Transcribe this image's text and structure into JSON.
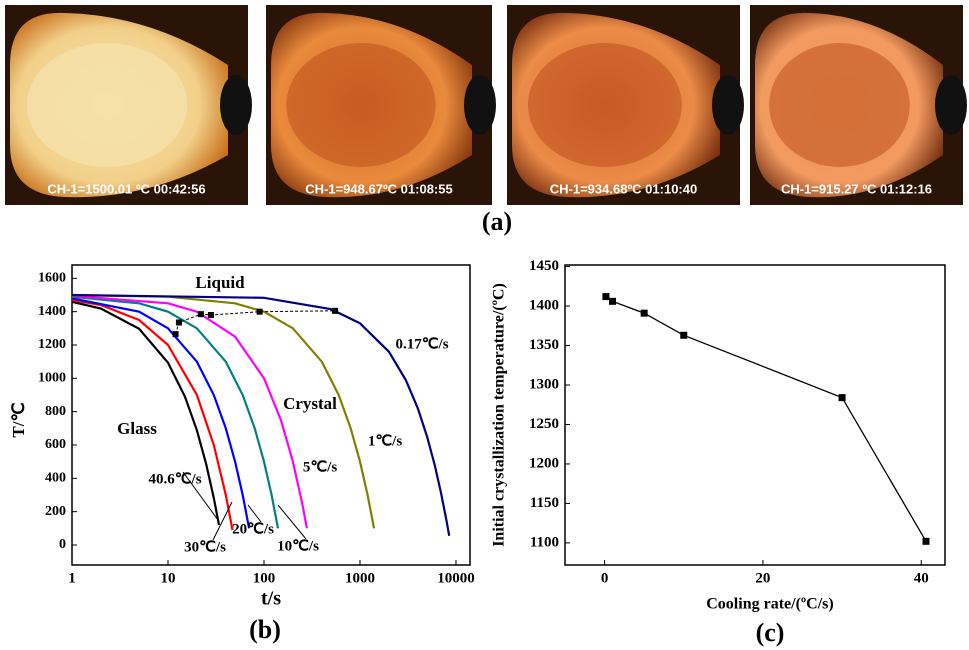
{
  "photos": [
    {
      "caption": "CH-1=1500.01 ºC  00:42:56"
    },
    {
      "caption": "CH-1=948.67ºC  01:08:55"
    },
    {
      "caption": "CH-1=934.68ºC  01:10:40"
    },
    {
      "caption": "CH-1=915.27 ºC  01:12:16"
    }
  ],
  "panel_labels": [
    "(a)",
    "(b)",
    "(c)"
  ],
  "chart_data": [
    {
      "type": "line",
      "x_label": "t/s",
      "y_label": "T/℃",
      "log_x": true,
      "xlim": [
        1,
        14000
      ],
      "xticks": [
        1,
        10,
        100,
        1000,
        10000
      ],
      "ylim": [
        -120,
        1680
      ],
      "yticks": [
        0,
        200,
        400,
        600,
        800,
        1000,
        1200,
        1400,
        1600
      ],
      "annotations": [
        "Liquid",
        "Crystal",
        "Glass"
      ],
      "series": [
        {
          "name": "40.6℃/s",
          "color": "#000000",
          "x": [
            1,
            2,
            5,
            10,
            15,
            20,
            25,
            30,
            34
          ],
          "values": [
            1459,
            1419,
            1297,
            1094,
            891,
            688,
            485,
            282,
            120
          ]
        },
        {
          "name": "30℃/s",
          "color": "#ff0000",
          "x": [
            1,
            2,
            5,
            10,
            20,
            30,
            40,
            47
          ],
          "values": [
            1470,
            1440,
            1350,
            1200,
            900,
            600,
            300,
            90
          ]
        },
        {
          "name": "20℃/s",
          "color": "#0000ff",
          "x": [
            1,
            5,
            10,
            20,
            30,
            40,
            50,
            60,
            70
          ],
          "values": [
            1480,
            1400,
            1300,
            1100,
            900,
            700,
            500,
            300,
            100
          ]
        },
        {
          "name": "10℃/s",
          "color": "#008080",
          "x": [
            1,
            5,
            10,
            20,
            40,
            60,
            80,
            100,
            120,
            140
          ],
          "values": [
            1490,
            1450,
            1400,
            1300,
            1100,
            900,
            700,
            500,
            300,
            100
          ]
        },
        {
          "name": "5℃/s",
          "color": "#ff00ff",
          "x": [
            1,
            10,
            20,
            50,
            100,
            150,
            200,
            250,
            280
          ],
          "values": [
            1495,
            1450,
            1400,
            1250,
            1000,
            750,
            500,
            250,
            100
          ]
        },
        {
          "name": "1℃/s",
          "color": "#808000",
          "x": [
            1,
            10,
            50,
            100,
            200,
            400,
            600,
            800,
            1000,
            1200,
            1400
          ],
          "values": [
            1499,
            1490,
            1450,
            1400,
            1300,
            1100,
            900,
            700,
            500,
            300,
            100
          ]
        },
        {
          "name": "0.17℃/s",
          "color": "#000080",
          "x": [
            1,
            100,
            500,
            1000,
            2000,
            3000,
            4000,
            5000,
            6000,
            7000,
            8000,
            8500
          ],
          "values": [
            1500,
            1483,
            1415,
            1330,
            1160,
            990,
            820,
            650,
            480,
            310,
            140,
            55
          ]
        }
      ],
      "markers": {
        "x": [
          12,
          13,
          22,
          28,
          90,
          550
        ],
        "values": [
          1265,
          1335,
          1385,
          1380,
          1400,
          1405
        ]
      }
    },
    {
      "type": "scatter-line",
      "x_label": "Cooling rate/(ºC/s)",
      "y_label": "Initial crystallization temperature/(ºC)",
      "xlim": [
        -5,
        43
      ],
      "xticks": [
        0,
        20,
        40
      ],
      "ylim": [
        1072,
        1452
      ],
      "yticks": [
        1100,
        1150,
        1200,
        1250,
        1300,
        1350,
        1400,
        1450
      ],
      "color": "#000000",
      "x": [
        0.17,
        1,
        5,
        10,
        30,
        40.6
      ],
      "values": [
        1412,
        1406,
        1391,
        1363,
        1284,
        1102
      ]
    }
  ]
}
